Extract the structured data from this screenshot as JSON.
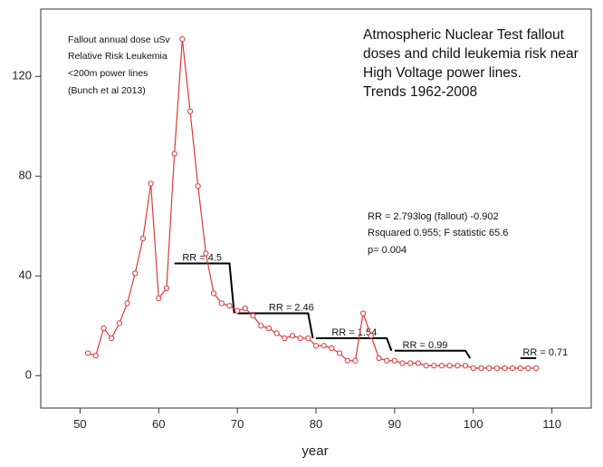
{
  "chart_data": {
    "type": "line",
    "title_lines": [
      "Atmospheric Nuclear Test fallout",
      "doses and child leukemia risk near",
      "High Voltage power lines.",
      "Trends 1962-2008"
    ],
    "legend_lines": [
      "Fallout annual dose uSv",
      "Relative Risk Leukemia",
      "<200m power lines",
      "(Bunch et al 2013)"
    ],
    "stats_lines": [
      "RR = 2.793log (fallout) -0.902",
      "Rsquared 0.955; F statistic 65.6",
      "p= 0.004"
    ],
    "xlabel": "year",
    "ylabel": "",
    "xlim": [
      45,
      115
    ],
    "ylim": [
      -13,
      147
    ],
    "xticks": [
      50,
      60,
      70,
      80,
      90,
      100,
      110
    ],
    "yticks": [
      0,
      40,
      80,
      120
    ],
    "series": [
      {
        "name": "Fallout annual dose uSv",
        "color": "#d93a3a",
        "x": [
          51,
          52,
          53,
          54,
          55,
          56,
          57,
          58,
          59,
          60,
          61,
          62,
          63,
          64,
          65,
          66,
          67,
          68,
          69,
          70,
          71,
          72,
          73,
          74,
          75,
          76,
          77,
          78,
          79,
          80,
          81,
          82,
          83,
          84,
          85,
          86,
          87,
          88,
          89,
          90,
          91,
          92,
          93,
          94,
          95,
          96,
          97,
          98,
          99,
          100,
          101,
          102,
          103,
          104,
          105,
          106,
          107,
          108
        ],
        "values": [
          9,
          8,
          19,
          15,
          21,
          29,
          41,
          55,
          77,
          31,
          35,
          89,
          135,
          106,
          76,
          49,
          33,
          29,
          28,
          26,
          27,
          24,
          20,
          19,
          17,
          15,
          16,
          15,
          15,
          12,
          12,
          11,
          9,
          6,
          6,
          25,
          16,
          7,
          6,
          6,
          5,
          5,
          5,
          4,
          4,
          4,
          4,
          4,
          4,
          3,
          3,
          3,
          3,
          3,
          3,
          3,
          3,
          3
        ]
      },
      {
        "name": "Relative Risk Leukemia",
        "color": "#000000",
        "segments": [
          {
            "label": "RR = 4.5",
            "x": [
              62,
              69
            ],
            "y": 45,
            "drop_to": 25
          },
          {
            "label": "RR = 2.46",
            "x": [
              70,
              79
            ],
            "y": 25,
            "drop_to": 15
          },
          {
            "label": "RR = 1.54",
            "x": [
              80,
              89
            ],
            "y": 15,
            "drop_to": 10
          },
          {
            "label": "RR = 0.99",
            "x": [
              90,
              99
            ],
            "y": 10,
            "drop_to": 7
          },
          {
            "label": "RR = 0.71",
            "x": [
              106,
              108
            ],
            "y": 7
          }
        ]
      }
    ]
  }
}
